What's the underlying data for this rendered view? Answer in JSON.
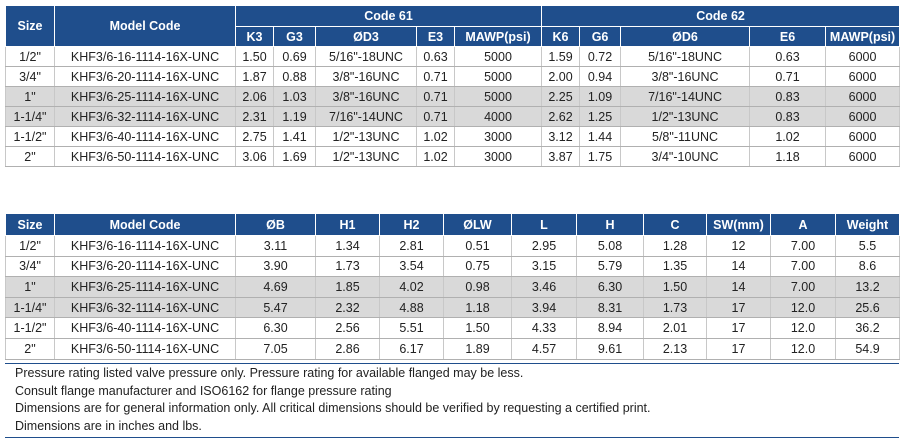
{
  "table1": {
    "headers": {
      "size": "Size",
      "model_code": "Model Code",
      "group61": "Code 61",
      "group62": "Code 62",
      "k3": "K3",
      "g3": "G3",
      "od3": "ØD3",
      "e3": "E3",
      "mawp1": "MAWP(psi)",
      "k6": "K6",
      "g6": "G6",
      "od6": "ØD6",
      "e6": "E6",
      "mawp2": "MAWP(psi)"
    },
    "rows": [
      {
        "size": "1/2\"",
        "model": "KHF3/6-16-1114-16X-UNC",
        "k3": "1.50",
        "g3": "0.69",
        "od3": "5/16\"-18UNC",
        "e3": "0.63",
        "mawp1": "5000",
        "k6": "1.59",
        "g6": "0.72",
        "od6": "5/16\"-18UNC",
        "e6": "0.63",
        "mawp2": "6000"
      },
      {
        "size": "3/4\"",
        "model": "KHF3/6-20-1114-16X-UNC",
        "k3": "1.87",
        "g3": "0.88",
        "od3": "3/8\"-16UNC",
        "e3": "0.71",
        "mawp1": "5000",
        "k6": "2.00",
        "g6": "0.94",
        "od6": "3/8\"-16UNC",
        "e6": "0.71",
        "mawp2": "6000"
      },
      {
        "size": "1\"",
        "model": "KHF3/6-25-1114-16X-UNC",
        "k3": "2.06",
        "g3": "1.03",
        "od3": "3/8\"-16UNC",
        "e3": "0.71",
        "mawp1": "5000",
        "k6": "2.25",
        "g6": "1.09",
        "od6": "7/16\"-14UNC",
        "e6": "0.83",
        "mawp2": "6000"
      },
      {
        "size": "1-1/4\"",
        "model": "KHF3/6-32-1114-16X-UNC",
        "k3": "2.31",
        "g3": "1.19",
        "od3": "7/16\"-14UNC",
        "e3": "0.71",
        "mawp1": "4000",
        "k6": "2.62",
        "g6": "1.25",
        "od6": "1/2\"-13UNC",
        "e6": "0.83",
        "mawp2": "6000"
      },
      {
        "size": "1-1/2\"",
        "model": "KHF3/6-40-1114-16X-UNC",
        "k3": "2.75",
        "g3": "1.41",
        "od3": "1/2\"-13UNC",
        "e3": "1.02",
        "mawp1": "3000",
        "k6": "3.12",
        "g6": "1.44",
        "od6": "5/8\"-11UNC",
        "e6": "1.02",
        "mawp2": "6000"
      },
      {
        "size": "2\"",
        "model": "KHF3/6-50-1114-16X-UNC",
        "k3": "3.06",
        "g3": "1.69",
        "od3": "1/2\"-13UNC",
        "e3": "1.02",
        "mawp1": "3000",
        "k6": "3.87",
        "g6": "1.75",
        "od6": "3/4\"-10UNC",
        "e6": "1.18",
        "mawp2": "6000"
      }
    ]
  },
  "table2": {
    "headers": {
      "size": "Size",
      "model_code": "Model Code",
      "ob": "ØB",
      "h1": "H1",
      "h2": "H2",
      "olw": "ØLW",
      "l": "L",
      "h": "H",
      "c": "C",
      "sw": "SW(mm)",
      "a": "A",
      "weight": "Weight"
    },
    "rows": [
      {
        "size": "1/2\"",
        "model": "KHF3/6-16-1114-16X-UNC",
        "ob": "3.11",
        "h1": "1.34",
        "h2": "2.81",
        "olw": "0.51",
        "l": "2.95",
        "h": "5.08",
        "c": "1.28",
        "sw": "12",
        "a": "7.00",
        "weight": "5.5"
      },
      {
        "size": "3/4\"",
        "model": "KHF3/6-20-1114-16X-UNC",
        "ob": "3.90",
        "h1": "1.73",
        "h2": "3.54",
        "olw": "0.75",
        "l": "3.15",
        "h": "5.79",
        "c": "1.35",
        "sw": "14",
        "a": "7.00",
        "weight": "8.6"
      },
      {
        "size": "1\"",
        "model": "KHF3/6-25-1114-16X-UNC",
        "ob": "4.69",
        "h1": "1.85",
        "h2": "4.02",
        "olw": "0.98",
        "l": "3.46",
        "h": "6.30",
        "c": "1.50",
        "sw": "14",
        "a": "7.00",
        "weight": "13.2"
      },
      {
        "size": "1-1/4\"",
        "model": "KHF3/6-32-1114-16X-UNC",
        "ob": "5.47",
        "h1": "2.32",
        "h2": "4.88",
        "olw": "1.18",
        "l": "3.94",
        "h": "8.31",
        "c": "1.73",
        "sw": "17",
        "a": "12.0",
        "weight": "25.6"
      },
      {
        "size": "1-1/2\"",
        "model": "KHF3/6-40-1114-16X-UNC",
        "ob": "6.30",
        "h1": "2.56",
        "h2": "5.51",
        "olw": "1.50",
        "l": "4.33",
        "h": "8.94",
        "c": "2.01",
        "sw": "17",
        "a": "12.0",
        "weight": "36.2"
      },
      {
        "size": "2\"",
        "model": "KHF3/6-50-1114-16X-UNC",
        "ob": "7.05",
        "h1": "2.86",
        "h2": "6.17",
        "olw": "1.89",
        "l": "4.57",
        "h": "9.61",
        "c": "2.13",
        "sw": "17",
        "a": "12.0",
        "weight": "54.9"
      }
    ]
  },
  "notes": [
    "Pressure rating listed valve pressure only. Pressure rating for available flanged may be less.",
    "Consult flange manufacturer and ISO6162 for flange pressure rating",
    "Dimensions are for general information only. All critical dimensions should be verified by requesting a certified print.",
    "Dimensions are in inches and lbs."
  ],
  "colors": {
    "header_bg": "#1f4e8c",
    "header_text": "#ffffff",
    "row_shade": "#d9d9d9"
  }
}
